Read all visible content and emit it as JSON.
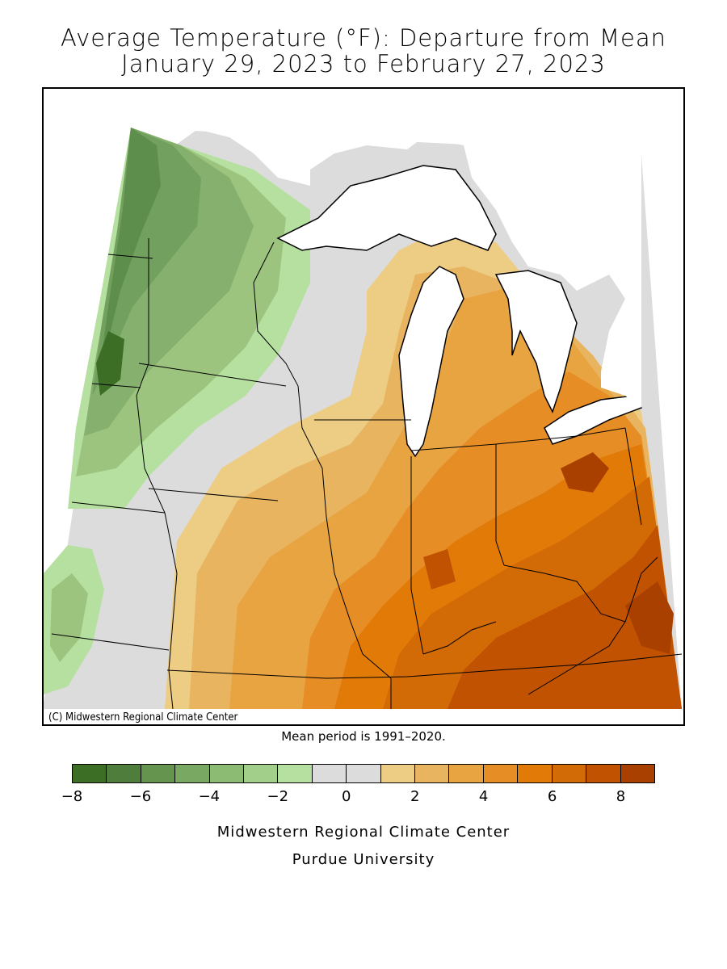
{
  "title_line1": "Average Temperature (°F): Departure from Mean",
  "title_line2": "January 29, 2023 to February 27, 2023",
  "map": {
    "credit": "(C) Midwestern Regional Climate Center",
    "colors": {
      "g8": "#3c6e26",
      "g6": "#5e8e4c",
      "g5": "#72a05e",
      "g4": "#86b06e",
      "g3": "#9cc47e",
      "g2": "#b6e0a0",
      "zero": "#dcdcdc",
      "o1": "#edcc84",
      "o2": "#e8b460",
      "o3": "#e8a440",
      "o4": "#e68d26",
      "o5": "#e27a08",
      "o6": "#d26a06",
      "o7": "#c05202",
      "o8": "#aa4000"
    }
  },
  "mean_note": "Mean period is 1991–2020.",
  "legend": {
    "colors": [
      "#3c6e26",
      "#4f7e3c",
      "#64944e",
      "#78a862",
      "#8cbc74",
      "#a2d08a",
      "#b6e0a0",
      "#dcdcdc",
      "#dcdcdc",
      "#edcc84",
      "#e8b460",
      "#e8a440",
      "#e68d26",
      "#e27a08",
      "#d26a06",
      "#c05202",
      "#aa4000"
    ],
    "ticks": [
      "−8",
      "−6",
      "−4",
      "−2",
      "0",
      "2",
      "4",
      "6",
      "8"
    ]
  },
  "footer_line1": "Midwestern Regional Climate Center",
  "footer_line2": "Purdue University"
}
